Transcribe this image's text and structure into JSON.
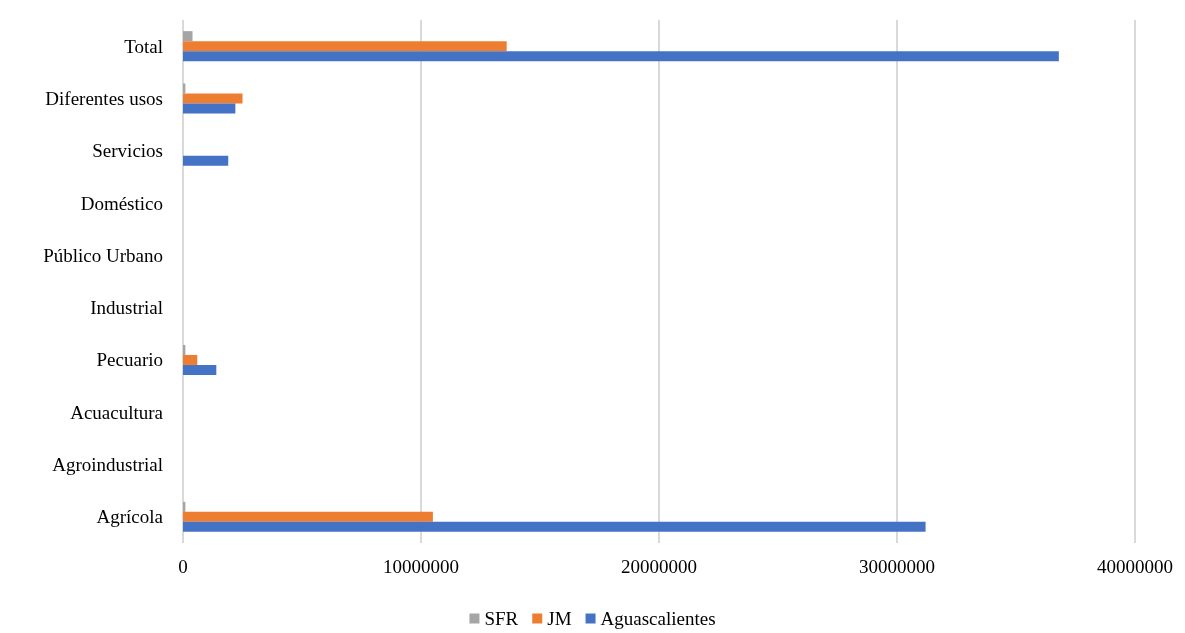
{
  "chart_data": {
    "type": "bar",
    "orientation": "horizontal",
    "categories": [
      "Total",
      "Diferentes usos",
      "Servicios",
      "Doméstico",
      "Público Urbano",
      "Industrial",
      "Pecuario",
      "Acuacultura",
      "Agroindustrial",
      "Agrícola"
    ],
    "series": [
      {
        "name": "SFR",
        "color": "#a5a5a5",
        "values": [
          400000,
          100000,
          0,
          0,
          0,
          0,
          100000,
          0,
          0,
          100000
        ]
      },
      {
        "name": "JM",
        "color": "#ed7d31",
        "values": [
          13600000,
          2500000,
          0,
          0,
          0,
          0,
          600000,
          0,
          0,
          10500000
        ]
      },
      {
        "name": "Aguascalientes",
        "color": "#4472c4",
        "values": [
          36800000,
          2200000,
          1900000,
          0,
          0,
          0,
          1400000,
          0,
          0,
          31200000
        ]
      }
    ],
    "xlim": [
      0,
      40000000
    ],
    "xticks": [
      0,
      10000000,
      20000000,
      30000000,
      40000000
    ],
    "grid": "x",
    "legend": "bottom"
  }
}
